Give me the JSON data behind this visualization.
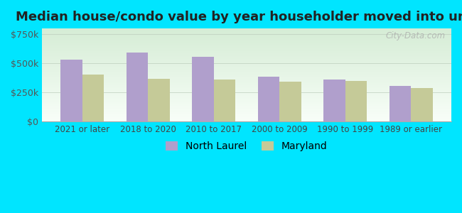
{
  "title": "Median house/condo value by year householder moved into unit",
  "categories": [
    "2021 or later",
    "2018 to 2020",
    "2010 to 2017",
    "2000 to 2009",
    "1990 to 1999",
    "1989 or earlier"
  ],
  "north_laurel": [
    530000,
    590000,
    555000,
    385000,
    360000,
    305000
  ],
  "maryland": [
    405000,
    365000,
    360000,
    345000,
    350000,
    285000
  ],
  "bar_color_nl": "#b09fcc",
  "bar_color_md": "#c5ca98",
  "background_color": "#00e5ff",
  "yticks": [
    0,
    250000,
    500000,
    750000
  ],
  "ylabels": [
    "$0",
    "$250k",
    "$500k",
    "$750k"
  ],
  "ylim": [
    0,
    800000
  ],
  "legend_nl": "North Laurel",
  "legend_md": "Maryland",
  "watermark": "City-Data.com"
}
